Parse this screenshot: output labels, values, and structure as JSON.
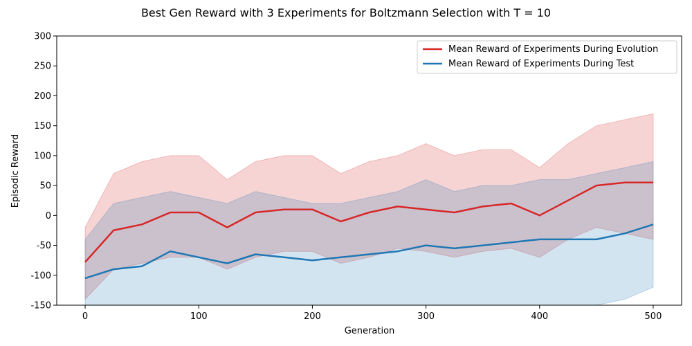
{
  "chart_data": {
    "type": "line",
    "title": "Best Gen Reward with 3 Experiments for Boltzmann Selection with T = 10",
    "xlabel": "Generation",
    "ylabel": "Episodic Reward",
    "xlim": [
      -25,
      525
    ],
    "ylim": [
      -150,
      300
    ],
    "xticks": [
      0,
      100,
      200,
      300,
      400,
      500
    ],
    "yticks": [
      -150,
      -100,
      -50,
      0,
      50,
      100,
      150,
      200,
      250,
      300
    ],
    "grid": false,
    "legend_position": "top-right",
    "x": [
      0,
      25,
      50,
      75,
      100,
      125,
      150,
      175,
      200,
      225,
      250,
      275,
      300,
      325,
      350,
      375,
      400,
      425,
      450,
      475,
      500
    ],
    "series": [
      {
        "name": "Mean Reward of Experiments During Evolution",
        "color": "#d62728",
        "values": [
          -78,
          -25,
          -15,
          5,
          5,
          -20,
          5,
          10,
          10,
          -10,
          5,
          15,
          10,
          5,
          15,
          20,
          0,
          25,
          50,
          55,
          55
        ],
        "band_lower": [
          -140,
          -90,
          -80,
          -70,
          -70,
          -90,
          -70,
          -60,
          -60,
          -80,
          -70,
          -55,
          -60,
          -70,
          -60,
          -55,
          -70,
          -40,
          -20,
          -30,
          -40
        ],
        "band_upper": [
          -20,
          70,
          90,
          100,
          100,
          60,
          90,
          100,
          100,
          70,
          90,
          100,
          120,
          100,
          110,
          110,
          80,
          120,
          150,
          160,
          170
        ]
      },
      {
        "name": "Mean Reward of Experiments During Test",
        "color": "#1f77b4",
        "values": [
          -105,
          -90,
          -85,
          -60,
          -70,
          -80,
          -65,
          -70,
          -75,
          -70,
          -65,
          -60,
          -50,
          -55,
          -50,
          -45,
          -40,
          -40,
          -40,
          -30,
          -15
        ],
        "band_lower": [
          -150,
          -150,
          -150,
          -150,
          -150,
          -150,
          -150,
          -150,
          -150,
          -150,
          -150,
          -150,
          -150,
          -150,
          -150,
          -150,
          -150,
          -150,
          -150,
          -140,
          -120
        ],
        "band_upper": [
          -40,
          20,
          30,
          40,
          30,
          20,
          40,
          30,
          20,
          20,
          30,
          40,
          60,
          40,
          50,
          50,
          60,
          60,
          70,
          80,
          90
        ]
      }
    ]
  }
}
